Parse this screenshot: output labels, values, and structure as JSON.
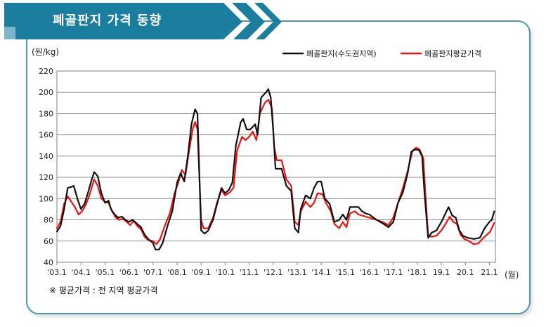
{
  "header": {
    "title": "폐골판지 가격 동향"
  },
  "footnote": "※ 평균가격 : 전 지역 평균가격",
  "chart_data": {
    "type": "line",
    "title": "폐골판지 가격 동향",
    "ylabel": "(원/kg)",
    "xlabel": "(월)",
    "ylim": [
      40,
      220
    ],
    "yticks": [
      40,
      60,
      80,
      100,
      120,
      140,
      160,
      180,
      200,
      220
    ],
    "xlim": [
      2003.0,
      2021.25
    ],
    "xtick_labels": [
      "'03.1",
      "'04.1",
      "'05.1",
      "'06.1",
      "'07.1",
      "'08.1",
      "'09.1",
      "'10.1",
      "'11.1",
      "'12.1",
      "'13.1",
      "'14.1",
      "'15.1",
      "'16.1",
      "'17.1",
      "'18.1",
      "19.1",
      "20.1",
      "21.1"
    ],
    "grid": true,
    "legend_position": "top-right",
    "series": [
      {
        "name": "폐골판지(수도권지역)",
        "color": "#111111",
        "points": [
          [
            2003.0,
            69
          ],
          [
            2003.15,
            74
          ],
          [
            2003.3,
            90
          ],
          [
            2003.45,
            110
          ],
          [
            2003.6,
            111
          ],
          [
            2003.7,
            112
          ],
          [
            2003.85,
            100
          ],
          [
            2004.0,
            90
          ],
          [
            2004.15,
            95
          ],
          [
            2004.3,
            106
          ],
          [
            2004.45,
            118
          ],
          [
            2004.55,
            125
          ],
          [
            2004.7,
            121
          ],
          [
            2004.85,
            105
          ],
          [
            2005.0,
            96
          ],
          [
            2005.15,
            98
          ],
          [
            2005.25,
            90
          ],
          [
            2005.4,
            85
          ],
          [
            2005.55,
            82
          ],
          [
            2005.7,
            83
          ],
          [
            2005.85,
            80
          ],
          [
            2006.0,
            78
          ],
          [
            2006.15,
            80
          ],
          [
            2006.35,
            76
          ],
          [
            2006.5,
            73
          ],
          [
            2006.65,
            66
          ],
          [
            2006.8,
            62
          ],
          [
            2007.0,
            58
          ],
          [
            2007.1,
            52
          ],
          [
            2007.25,
            52
          ],
          [
            2007.4,
            58
          ],
          [
            2007.6,
            74
          ],
          [
            2007.8,
            88
          ],
          [
            2008.0,
            115
          ],
          [
            2008.15,
            124
          ],
          [
            2008.3,
            116
          ],
          [
            2008.45,
            140
          ],
          [
            2008.6,
            170
          ],
          [
            2008.75,
            184
          ],
          [
            2008.85,
            180
          ],
          [
            2009.0,
            70
          ],
          [
            2009.15,
            67
          ],
          [
            2009.3,
            70
          ],
          [
            2009.5,
            80
          ],
          [
            2009.7,
            98
          ],
          [
            2009.85,
            110
          ],
          [
            2010.0,
            105
          ],
          [
            2010.15,
            108
          ],
          [
            2010.3,
            115
          ],
          [
            2010.45,
            150
          ],
          [
            2010.65,
            172
          ],
          [
            2010.75,
            175
          ],
          [
            2010.9,
            165
          ],
          [
            2011.05,
            165
          ],
          [
            2011.25,
            170
          ],
          [
            2011.35,
            160
          ],
          [
            2011.5,
            195
          ],
          [
            2011.7,
            200
          ],
          [
            2011.8,
            203
          ],
          [
            2011.9,
            195
          ],
          [
            2012.0,
            165
          ],
          [
            2012.1,
            128
          ],
          [
            2012.35,
            128
          ],
          [
            2012.55,
            112
          ],
          [
            2012.75,
            107
          ],
          [
            2012.9,
            72
          ],
          [
            2013.05,
            68
          ],
          [
            2013.15,
            90
          ],
          [
            2013.35,
            103
          ],
          [
            2013.55,
            100
          ],
          [
            2013.7,
            110
          ],
          [
            2013.85,
            116
          ],
          [
            2014.0,
            116
          ],
          [
            2014.15,
            100
          ],
          [
            2014.35,
            95
          ],
          [
            2014.55,
            78
          ],
          [
            2014.75,
            80
          ],
          [
            2014.9,
            85
          ],
          [
            2015.05,
            80
          ],
          [
            2015.2,
            92
          ],
          [
            2015.4,
            92
          ],
          [
            2015.55,
            92
          ],
          [
            2015.7,
            88
          ],
          [
            2015.85,
            86
          ],
          [
            2016.0,
            85
          ],
          [
            2016.3,
            80
          ],
          [
            2016.6,
            76
          ],
          [
            2016.8,
            73
          ],
          [
            2017.0,
            78
          ],
          [
            2017.2,
            96
          ],
          [
            2017.4,
            106
          ],
          [
            2017.6,
            124
          ],
          [
            2017.75,
            144
          ],
          [
            2017.9,
            146
          ],
          [
            2018.05,
            146
          ],
          [
            2018.2,
            140
          ],
          [
            2018.3,
            105
          ],
          [
            2018.45,
            63
          ],
          [
            2018.6,
            68
          ],
          [
            2018.8,
            70
          ],
          [
            2019.0,
            78
          ],
          [
            2019.15,
            85
          ],
          [
            2019.3,
            92
          ],
          [
            2019.45,
            84
          ],
          [
            2019.6,
            82
          ],
          [
            2019.75,
            70
          ],
          [
            2019.9,
            65
          ],
          [
            2020.1,
            63
          ],
          [
            2020.35,
            62
          ],
          [
            2020.6,
            63
          ],
          [
            2020.8,
            72
          ],
          [
            2021.0,
            78
          ],
          [
            2021.1,
            80
          ],
          [
            2021.2,
            88
          ]
        ]
      },
      {
        "name": "폐골판지평균가격",
        "color": "#ee1111",
        "points": [
          [
            2003.0,
            72
          ],
          [
            2003.15,
            78
          ],
          [
            2003.3,
            95
          ],
          [
            2003.45,
            102
          ],
          [
            2003.6,
            97
          ],
          [
            2003.75,
            92
          ],
          [
            2003.9,
            85
          ],
          [
            2004.05,
            88
          ],
          [
            2004.2,
            94
          ],
          [
            2004.35,
            103
          ],
          [
            2004.55,
            118
          ],
          [
            2004.7,
            112
          ],
          [
            2004.85,
            100
          ],
          [
            2005.0,
            97
          ],
          [
            2005.15,
            96
          ],
          [
            2005.3,
            88
          ],
          [
            2005.45,
            82
          ],
          [
            2005.6,
            80
          ],
          [
            2005.75,
            81
          ],
          [
            2005.9,
            78
          ],
          [
            2006.05,
            75
          ],
          [
            2006.2,
            79
          ],
          [
            2006.35,
            74
          ],
          [
            2006.5,
            71
          ],
          [
            2006.65,
            64
          ],
          [
            2006.8,
            61
          ],
          [
            2007.0,
            60
          ],
          [
            2007.15,
            57
          ],
          [
            2007.3,
            62
          ],
          [
            2007.5,
            75
          ],
          [
            2007.7,
            86
          ],
          [
            2007.9,
            105
          ],
          [
            2008.05,
            115
          ],
          [
            2008.2,
            127
          ],
          [
            2008.35,
            122
          ],
          [
            2008.5,
            145
          ],
          [
            2008.65,
            165
          ],
          [
            2008.75,
            172
          ],
          [
            2008.85,
            165
          ],
          [
            2009.0,
            80
          ],
          [
            2009.1,
            72
          ],
          [
            2009.3,
            72
          ],
          [
            2009.5,
            82
          ],
          [
            2009.65,
            95
          ],
          [
            2009.85,
            108
          ],
          [
            2010.0,
            103
          ],
          [
            2010.2,
            106
          ],
          [
            2010.35,
            110
          ],
          [
            2010.5,
            145
          ],
          [
            2010.7,
            158
          ],
          [
            2010.85,
            155
          ],
          [
            2011.0,
            158
          ],
          [
            2011.15,
            163
          ],
          [
            2011.3,
            155
          ],
          [
            2011.45,
            180
          ],
          [
            2011.65,
            190
          ],
          [
            2011.8,
            193
          ],
          [
            2011.95,
            185
          ],
          [
            2012.05,
            148
          ],
          [
            2012.15,
            136
          ],
          [
            2012.35,
            136
          ],
          [
            2012.55,
            118
          ],
          [
            2012.75,
            112
          ],
          [
            2012.9,
            78
          ],
          [
            2013.05,
            75
          ],
          [
            2013.15,
            88
          ],
          [
            2013.35,
            97
          ],
          [
            2013.55,
            92
          ],
          [
            2013.7,
            96
          ],
          [
            2013.85,
            105
          ],
          [
            2014.05,
            104
          ],
          [
            2014.2,
            96
          ],
          [
            2014.4,
            88
          ],
          [
            2014.55,
            76
          ],
          [
            2014.75,
            72
          ],
          [
            2014.9,
            78
          ],
          [
            2015.05,
            73
          ],
          [
            2015.2,
            86
          ],
          [
            2015.4,
            88
          ],
          [
            2015.55,
            85
          ],
          [
            2015.7,
            84
          ],
          [
            2015.85,
            83
          ],
          [
            2016.0,
            82
          ],
          [
            2016.3,
            80
          ],
          [
            2016.55,
            78
          ],
          [
            2016.8,
            75
          ],
          [
            2017.0,
            82
          ],
          [
            2017.2,
            96
          ],
          [
            2017.4,
            110
          ],
          [
            2017.6,
            126
          ],
          [
            2017.8,
            145
          ],
          [
            2017.95,
            148
          ],
          [
            2018.1,
            146
          ],
          [
            2018.25,
            138
          ],
          [
            2018.35,
            100
          ],
          [
            2018.45,
            65
          ],
          [
            2018.6,
            64
          ],
          [
            2018.8,
            65
          ],
          [
            2019.0,
            70
          ],
          [
            2019.2,
            77
          ],
          [
            2019.35,
            83
          ],
          [
            2019.5,
            78
          ],
          [
            2019.65,
            76
          ],
          [
            2019.8,
            66
          ],
          [
            2019.95,
            62
          ],
          [
            2020.15,
            60
          ],
          [
            2020.35,
            57
          ],
          [
            2020.55,
            58
          ],
          [
            2020.75,
            63
          ],
          [
            2021.0,
            68
          ],
          [
            2021.1,
            72
          ],
          [
            2021.2,
            77
          ]
        ]
      }
    ]
  }
}
